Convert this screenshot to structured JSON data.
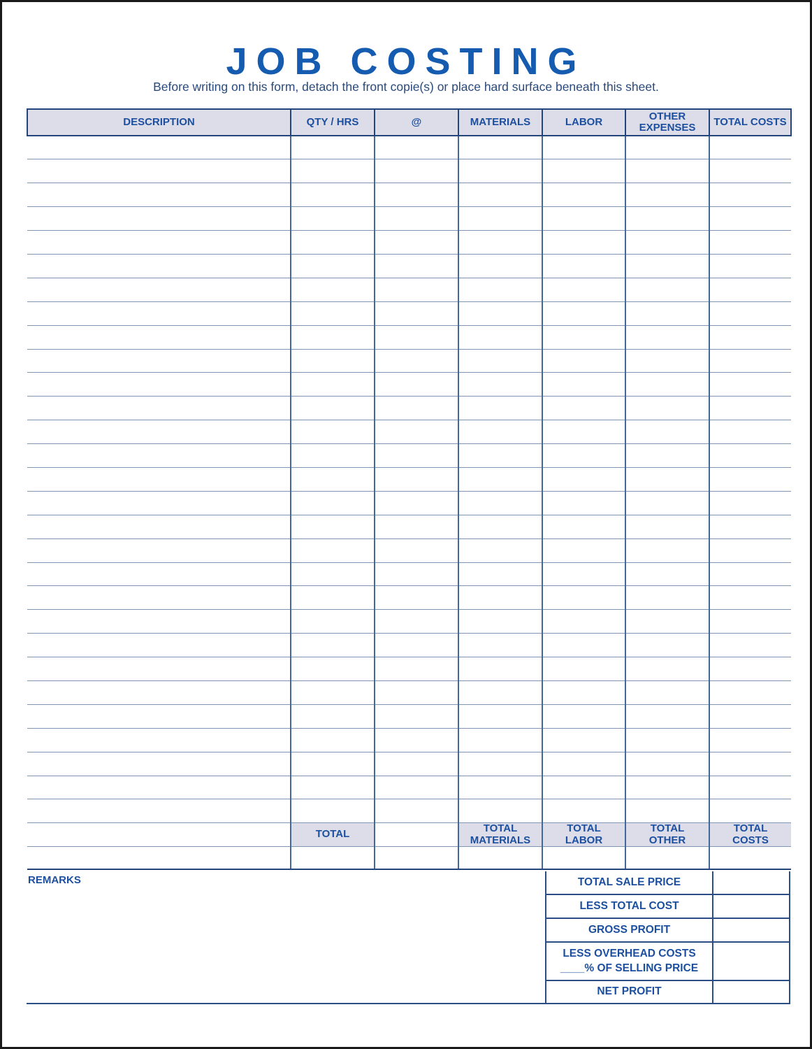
{
  "form": {
    "title": "JOB COSTING",
    "instruction": "Before writing on this form, detach the front copie(s) or place hard surface beneath this sheet.",
    "remarks_label": "REMARKS"
  },
  "table": {
    "columns": [
      "DESCRIPTION",
      "QTY / HRS",
      "@",
      "MATERIALS",
      "LABOR",
      "OTHER\nEXPENSES",
      "TOTAL COSTS"
    ],
    "column_keys": [
      "description",
      "qty-hrs",
      "at",
      "materials",
      "labor",
      "other-expenses",
      "total-costs"
    ],
    "body_row_count": 29,
    "totals_row": [
      "",
      "TOTAL",
      "",
      "TOTAL\nMATERIALS",
      "TOTAL\nLABOR",
      "TOTAL\nOTHER",
      "TOTAL\nCOSTS"
    ]
  },
  "summary": {
    "rows": [
      {
        "key": "total-sale-price",
        "label": "TOTAL SALE PRICE"
      },
      {
        "key": "less-total-cost",
        "label": "LESS TOTAL COST"
      },
      {
        "key": "gross-profit",
        "label": "GROSS PROFIT"
      },
      {
        "key": "less-overhead-costs",
        "label": "LESS OVERHEAD COSTS\n____% OF SELLING PRICE"
      },
      {
        "key": "net-profit",
        "label": "NET PROFIT"
      }
    ]
  },
  "colors": {
    "accent_blue": "#155cb0",
    "label_blue": "#1c4f9f",
    "instruction_blue": "#2a4a7d",
    "header_fill": "#dcdde9",
    "header_border": "#24457c",
    "grid_vertical": "#44689c",
    "grid_horizontal": "#7f95b2",
    "summary_border": "#2a4d85",
    "page_border": "#1a1a1a"
  }
}
